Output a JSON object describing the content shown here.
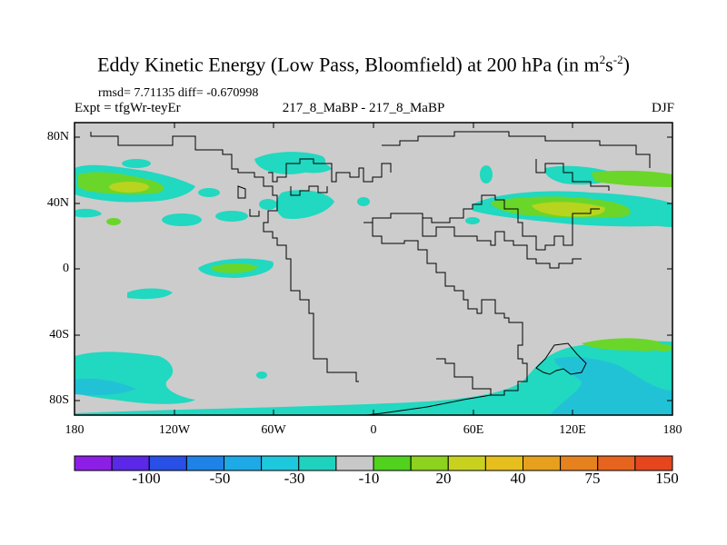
{
  "title": {
    "main": "Eddy Kinetic Energy (Low Pass, Bloomfield) at 200 hPa (in m",
    "sup1": "2",
    "mid": "s",
    "sup2": "-2",
    "end": ")"
  },
  "stats": "rmsd= 7.71135 diff= -0.670998",
  "experiment": "Expt = tfgWr-teyEr",
  "difference_label": "217_8_MaBP - 217_8_MaBP",
  "season": "DJF",
  "lat_labels": [
    "80N",
    "40N",
    "0",
    "40S",
    "80S"
  ],
  "lon_labels": [
    "180",
    "120W",
    "60W",
    "0",
    "60E",
    "120E",
    "180"
  ],
  "colorbar": {
    "labels": [
      "-100",
      "-50",
      "-30",
      "-10",
      "20",
      "40",
      "75",
      "150"
    ],
    "colors": [
      "#8c1ee6",
      "#5a28e6",
      "#2850e6",
      "#1e82e6",
      "#1eaae6",
      "#1ec8dc",
      "#1ed2be",
      "#c8c8c8",
      "#50d21e",
      "#8cd21e",
      "#c8d21e",
      "#e6be1e",
      "#e6a01e",
      "#e6821e",
      "#e6641e",
      "#e6461e"
    ]
  },
  "map_colors": {
    "background": "#cccccc",
    "cyan": "#21d8c0",
    "green": "#6ad62a",
    "yellowgreen": "#b8d41e",
    "teal": "#22c2d6"
  }
}
